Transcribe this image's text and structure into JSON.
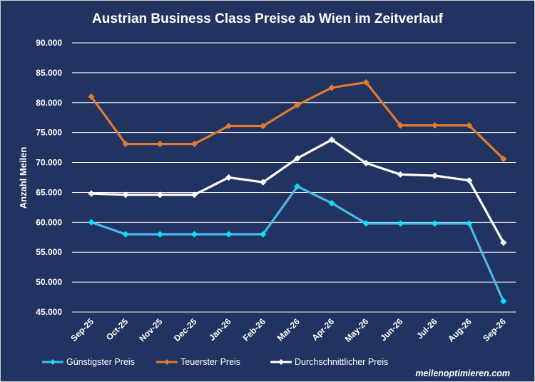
{
  "chart_data": {
    "type": "line",
    "title": "Austrian Business Class Preise ab Wien im Zeitverlauf",
    "ylabel": "Anzahl Meilen",
    "xlabel": "",
    "ylim": [
      45000,
      90000
    ],
    "yticks": [
      45000,
      50000,
      55000,
      60000,
      65000,
      70000,
      75000,
      80000,
      85000,
      90000
    ],
    "ytick_labels": [
      "45.000",
      "50.000",
      "55.000",
      "60.000",
      "65.000",
      "70.000",
      "75.000",
      "80.000",
      "85.000",
      "90.000"
    ],
    "grid": true,
    "legend_position": "bottom",
    "categories": [
      "Sep-25",
      "Oct-25",
      "Nov-25",
      "Dec-25",
      "Jan-26",
      "Feb-26",
      "Mar-26",
      "Apr-26",
      "May-26",
      "Jun-26",
      "Jul-26",
      "Aug-26",
      "Sep-26"
    ],
    "series": [
      {
        "name": "Günstigster Preis",
        "color": "#4db8e8",
        "marker_color": "#00e5ff",
        "values": [
          60000,
          58000,
          58000,
          58000,
          58000,
          58000,
          66000,
          63200,
          59800,
          59800,
          59800,
          59800,
          46800
        ]
      },
      {
        "name": "Teuerster Preis",
        "color": "#e07b2e",
        "marker_color": "#e07b2e",
        "values": [
          81000,
          73100,
          73100,
          73100,
          76100,
          76100,
          79600,
          82500,
          83400,
          76200,
          76200,
          76200,
          70600
        ]
      },
      {
        "name": "Durchschnittlicher Preis",
        "color": "#ffffff",
        "marker_color": "#ffffff",
        "values": [
          64800,
          64600,
          64600,
          64600,
          67500,
          66700,
          70700,
          73800,
          69900,
          68000,
          67800,
          67000,
          56600
        ]
      }
    ]
  },
  "credit": "meilenoptimieren.com"
}
